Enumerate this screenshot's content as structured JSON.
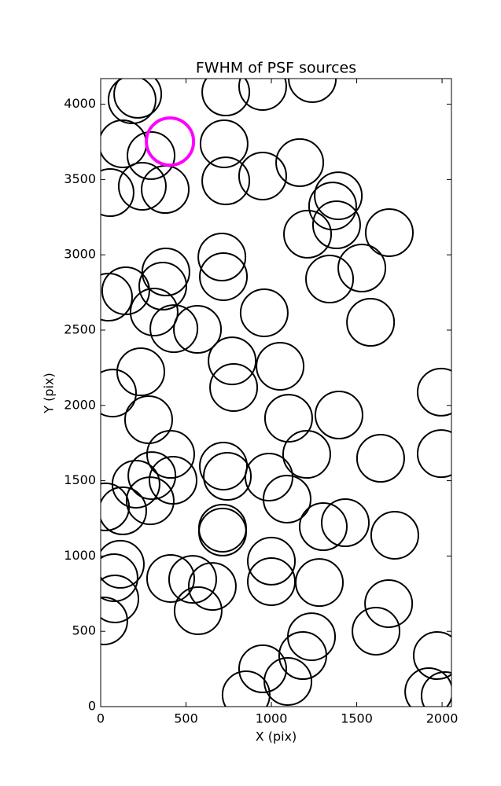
{
  "chart_data": {
    "type": "scatter",
    "title": "FWHM of PSF sources",
    "x_label": "X (pix)",
    "y_label": "Y (pix)",
    "xlim": [
      0,
      2055
    ],
    "ylim": [
      0,
      4170
    ],
    "xticks": [
      0,
      500,
      1000,
      1500,
      2000
    ],
    "yticks": [
      0,
      500,
      1000,
      1500,
      2000,
      2500,
      3000,
      3500,
      4000
    ],
    "series": [
      {
        "color": "#000000",
        "x": [
          217,
          184,
          129,
          295,
          244,
          378,
          55,
          733,
          949,
          1240,
          723,
          733,
          949,
          1166,
          1392,
          1359,
          1382,
          1212,
          1691,
          710,
          719,
          382,
          364,
          147,
          46,
          313,
          429,
          567,
          958,
          1341,
          1530,
          1581,
          770,
          779,
          1051,
          235,
          69,
          281,
          410,
          1101,
          1396,
          1207,
          1640,
          1995,
          1995,
          719,
          742,
          424,
          300,
          207,
          290,
          28,
          129,
          986,
          1092,
          1304,
          1433,
          714,
          714,
          1723,
          115,
          78,
          83,
          18,
          410,
          539,
          654,
          571,
          1000,
          1000,
          1281,
          1687,
          1235,
          1184,
          1613,
          949,
          852,
          1097,
          1972,
          1922,
          2018
        ],
        "values": [
          4066,
          4029,
          3737,
          3659,
          3455,
          3434,
          3413,
          4081,
          4118,
          4170,
          3737,
          3491,
          3523,
          3612,
          3392,
          3324,
          3199,
          3137,
          3147,
          2985,
          2855,
          2886,
          2792,
          2761,
          2719,
          2620,
          2510,
          2505,
          2615,
          2839,
          2912,
          2552,
          2296,
          2119,
          2260,
          2223,
          2082,
          1905,
          1675,
          1915,
          1936,
          1675,
          1649,
          2088,
          1680,
          1597,
          1529,
          1503,
          1534,
          1477,
          1367,
          1326,
          1300,
          1524,
          1378,
          1195,
          1221,
          1185,
          1159,
          1138,
          945,
          856,
          715,
          569,
          851,
          845,
          798,
          637,
          966,
          830,
          824,
          684,
          464,
          339,
          501,
          251,
          78,
          167,
          339,
          99,
          73
        ]
      },
      {
        "color": "#ff00ff",
        "x": [
          406
        ],
        "values": [
          3752
        ]
      }
    ]
  }
}
